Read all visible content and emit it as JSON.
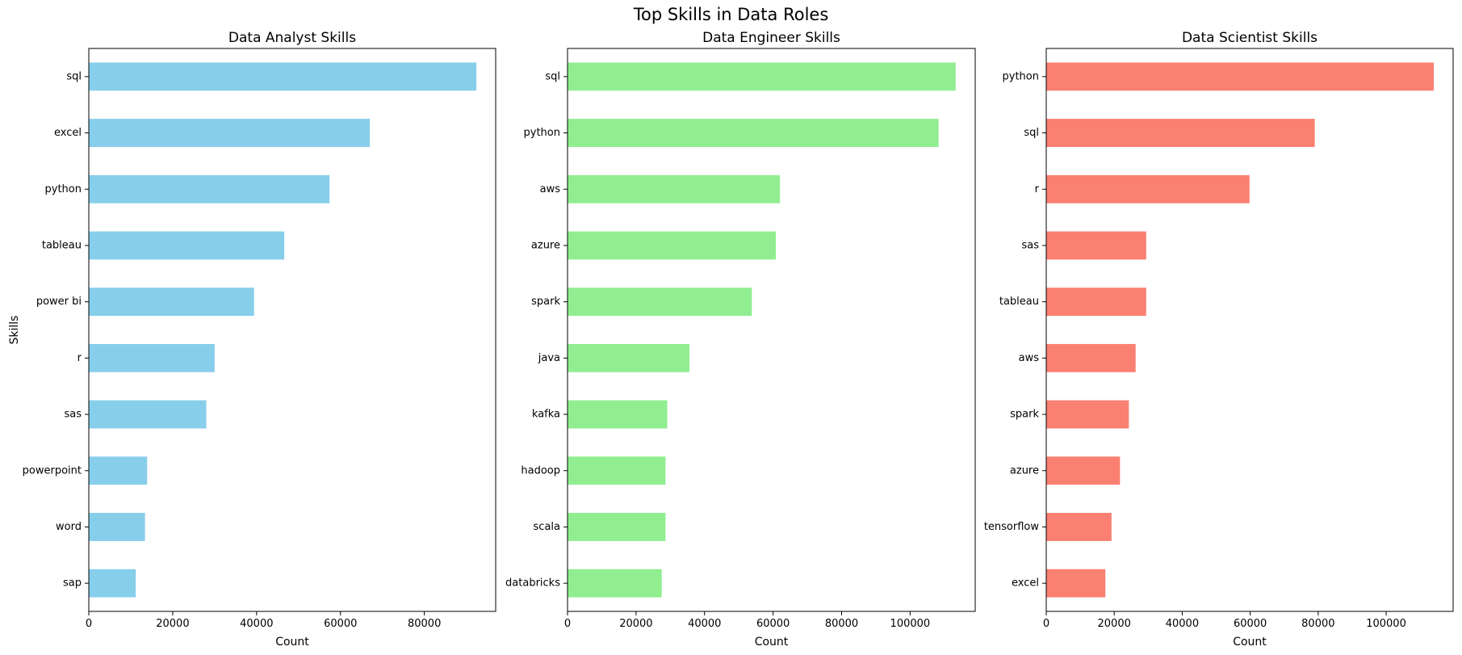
{
  "figure": {
    "title": "Top Skills in Data Roles"
  },
  "chart_data": [
    {
      "type": "bar",
      "orientation": "horizontal",
      "title": "Data Analyst Skills",
      "xlabel": "Count",
      "ylabel": "Skills",
      "color": "#87ceeb",
      "categories": [
        "sql",
        "excel",
        "python",
        "tableau",
        "power bi",
        "r",
        "sas",
        "powerpoint",
        "word",
        "sap"
      ],
      "values": [
        92400,
        67000,
        57400,
        46600,
        39400,
        30000,
        28000,
        13900,
        13400,
        11200
      ],
      "xlim": [
        0,
        97000
      ],
      "xticks": [
        0,
        20000,
        40000,
        60000,
        80000
      ],
      "grid": false,
      "legend": false
    },
    {
      "type": "bar",
      "orientation": "horizontal",
      "title": "Data Engineer Skills",
      "xlabel": "Count",
      "ylabel": "",
      "color": "#90ee90",
      "categories": [
        "sql",
        "python",
        "aws",
        "azure",
        "spark",
        "java",
        "kafka",
        "hadoop",
        "scala",
        "databricks"
      ],
      "values": [
        113300,
        108300,
        62000,
        60800,
        53800,
        35600,
        29100,
        28600,
        28600,
        27500
      ],
      "xlim": [
        0,
        119000
      ],
      "xticks": [
        0,
        20000,
        40000,
        60000,
        80000,
        100000
      ],
      "grid": false,
      "legend": false
    },
    {
      "type": "bar",
      "orientation": "horizontal",
      "title": "Data Scientist Skills",
      "xlabel": "Count",
      "ylabel": "",
      "color": "#fa8072",
      "categories": [
        "python",
        "sql",
        "r",
        "sas",
        "tableau",
        "aws",
        "spark",
        "azure",
        "tensorflow",
        "excel"
      ],
      "values": [
        114000,
        79000,
        59800,
        29400,
        29400,
        26300,
        24300,
        21700,
        19200,
        17400
      ],
      "xlim": [
        0,
        119700
      ],
      "xticks": [
        0,
        20000,
        40000,
        60000,
        80000,
        100000
      ],
      "grid": false,
      "legend": false
    }
  ]
}
